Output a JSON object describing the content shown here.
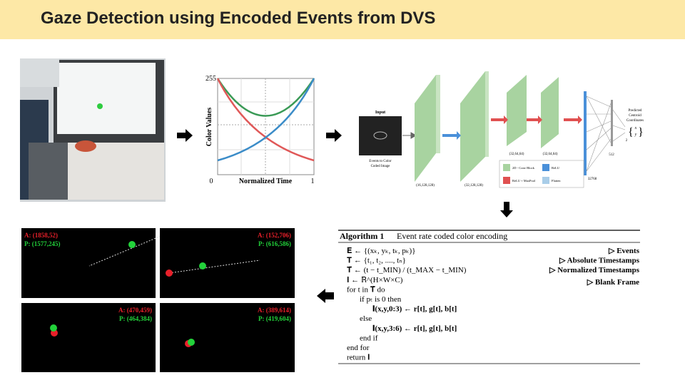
{
  "header": {
    "title": "Gaze Detection using Encoded Events from DVS"
  },
  "encoding_plot": {
    "y_label": "Color Values",
    "x_label": "Normalized Time",
    "y_max": "255",
    "x_min": "0",
    "x_max": "1"
  },
  "network": {
    "input_title": "Input",
    "input_caption": [
      "Events to Color",
      "Coded Image"
    ],
    "layer_sizes": [
      "(16,128,128)",
      "(32,128,128)",
      "(32,64,64)",
      "(32,64,64)",
      "32768",
      "512",
      "2"
    ],
    "legend": [
      "2D - Conv Block",
      "ReLU",
      "ReLU + MaxPool",
      "Flatten"
    ],
    "output": [
      "Predicted",
      "Centroid",
      "Coordinates"
    ],
    "output_vars": [
      "x",
      "y"
    ]
  },
  "algorithm": {
    "title": "Algorithm 1",
    "caption": "Event rate coded color encoding",
    "lines": [
      "𝐄 ← {(xₖ, yₖ, tₖ, pₖ)}",
      "𝐓 ← {t₁, t₂, ...., tₙ}",
      "𝐓̃ ← (t − t_MIN) / (t_MAX − t_MIN)",
      "𝐈 ← ℝ^(H×W×C)",
      "for t  in  𝐓̃ do",
      "if   pₜ  is  0 then",
      "𝐈(x,y,0:3) ←  r[t], g[t], b[t]",
      "else",
      "𝐈(x,y,3:6) ←  r[t], g[t], b[t]",
      "end if",
      "end for",
      "return 𝐈"
    ],
    "comments": [
      "▷ Events",
      "▷ Absolute Timestamps",
      "▷ Normalized Timestamps",
      "▷ Blank Frame"
    ]
  },
  "results": [
    {
      "actual": "A: (1858,52)",
      "predicted": "P: (1577,245)"
    },
    {
      "actual": "A: (152,706)",
      "predicted": "P: (616,586)"
    },
    {
      "actual": "A: (470,459)",
      "predicted": "P: (464,384)"
    },
    {
      "actual": "A: (389,614)",
      "predicted": "P: (419,604)"
    }
  ]
}
